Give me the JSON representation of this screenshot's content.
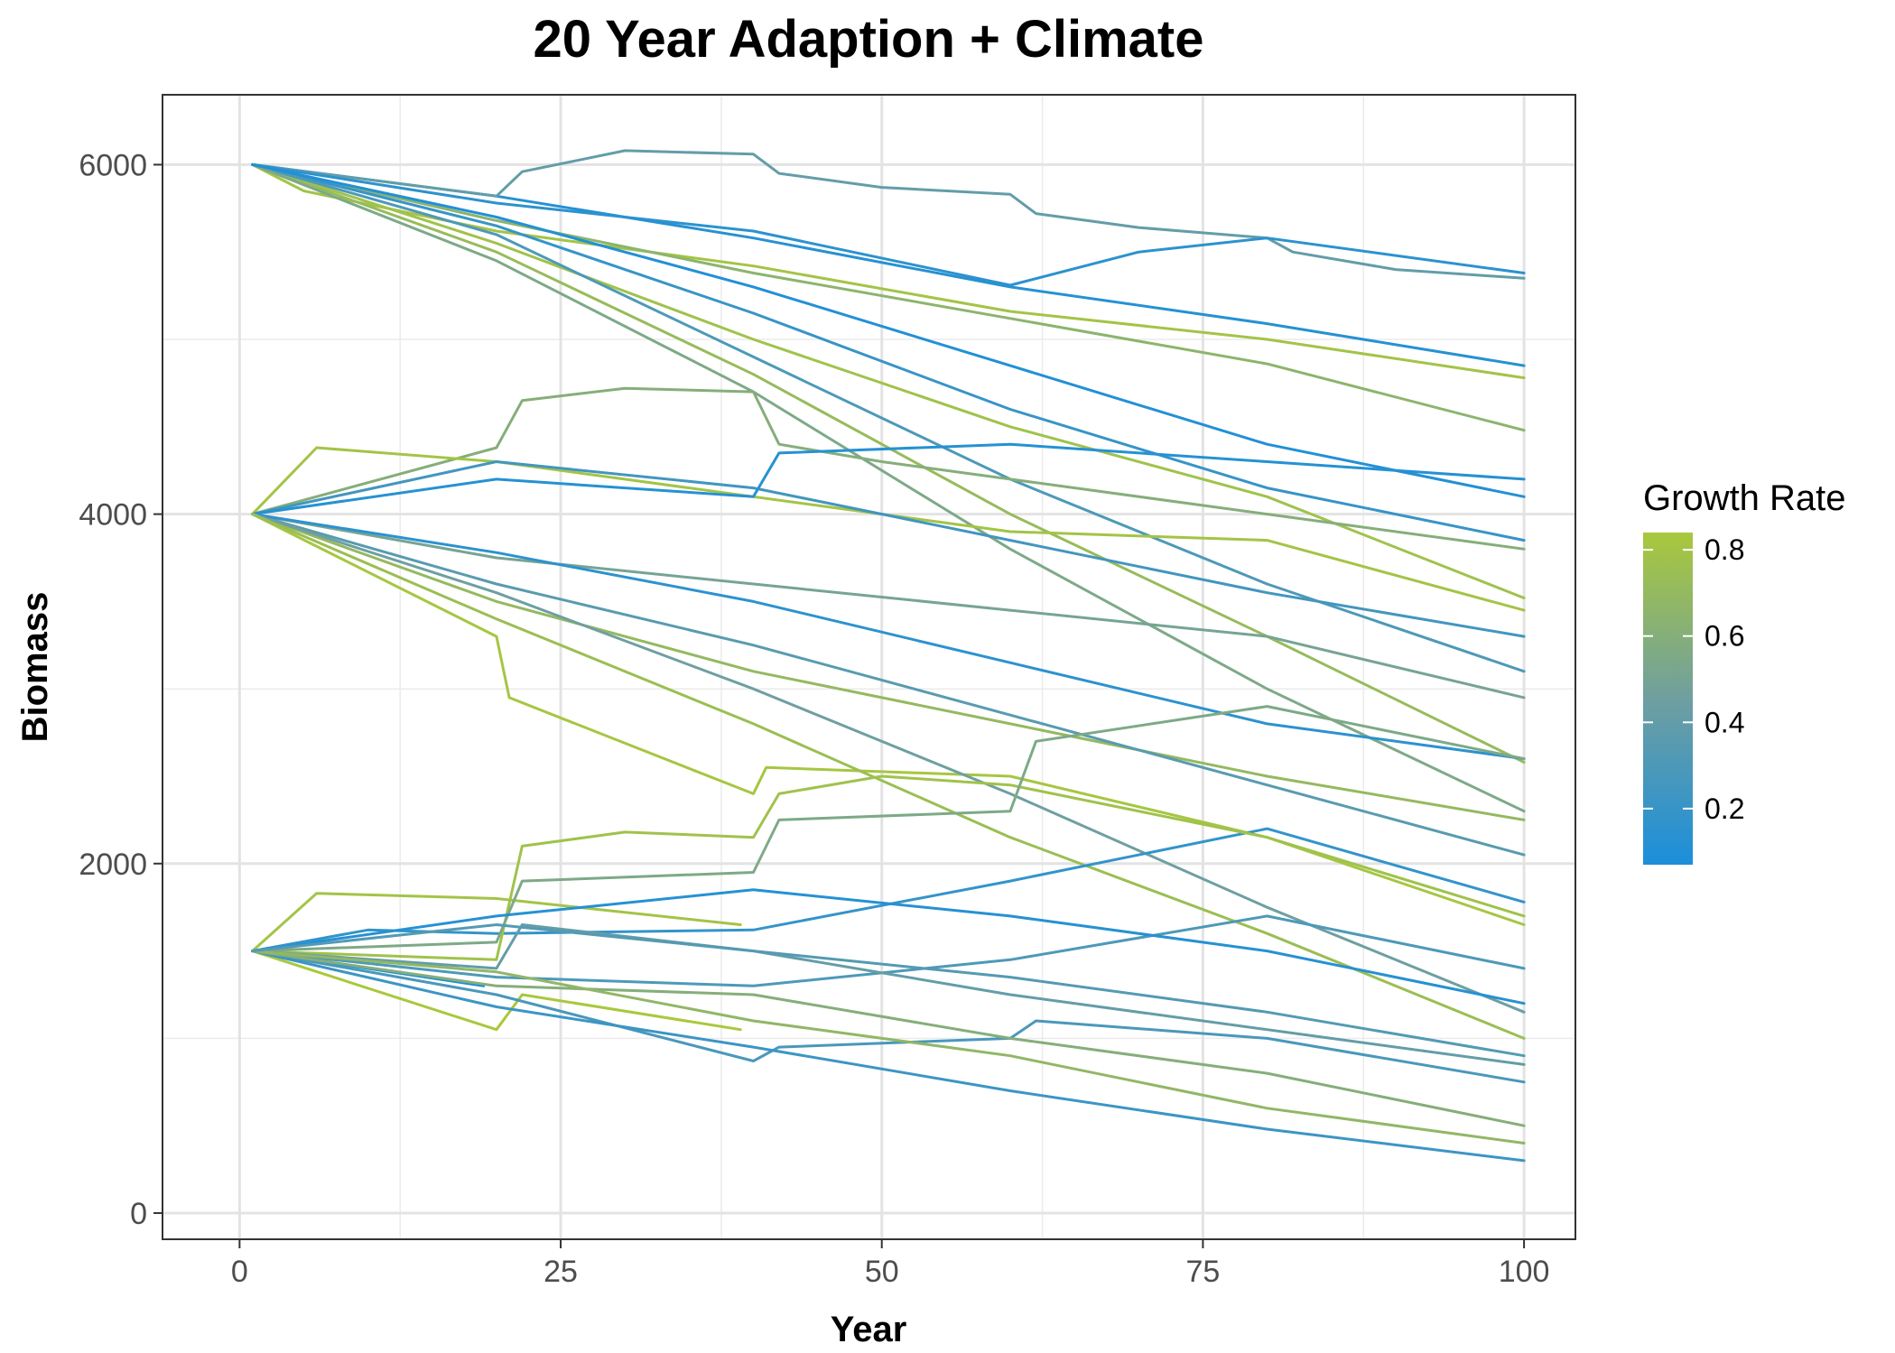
{
  "chart_data": {
    "type": "line",
    "title": "20 Year Adaption + Climate",
    "xlabel": "Year",
    "ylabel": "Biomass",
    "xlim": [
      -6,
      104
    ],
    "ylim": [
      -150,
      6400
    ],
    "x_ticks": [
      0,
      25,
      50,
      75,
      100
    ],
    "x_tick_labels": [
      "0",
      "25",
      "50",
      "75",
      "100"
    ],
    "y_ticks": [
      0,
      2000,
      4000,
      6000
    ],
    "y_tick_labels": [
      "0",
      "2000",
      "4000",
      "6000"
    ],
    "grid": true,
    "legend": {
      "title": "Growth Rate",
      "position": "right",
      "type": "colorbar",
      "range": [
        0.07,
        0.84
      ],
      "breaks": [
        0.2,
        0.4,
        0.6,
        0.8
      ],
      "break_labels": [
        "0.2",
        "0.4",
        "0.6",
        "0.8"
      ],
      "low_color": "#1b8fdb",
      "mid_color": "#6f9fa0",
      "high_color": "#a9c83c"
    },
    "series": [
      {
        "rate": 0.12,
        "x": [
          1,
          20,
          40,
          60,
          80,
          100
        ],
        "y": [
          6000,
          5820,
          5580,
          5300,
          5090,
          4850
        ]
      },
      {
        "rate": 0.4,
        "x": [
          1,
          20,
          22,
          30,
          40,
          42,
          50,
          60,
          62,
          70,
          80,
          82,
          90,
          100
        ],
        "y": [
          6000,
          5820,
          5960,
          6080,
          6060,
          5950,
          5870,
          5830,
          5720,
          5640,
          5580,
          5500,
          5400,
          5350
        ]
      },
      {
        "rate": 0.15,
        "x": [
          1,
          20,
          40,
          60,
          70,
          80,
          100
        ],
        "y": [
          6000,
          5780,
          5620,
          5310,
          5500,
          5580,
          5380
        ]
      },
      {
        "rate": 0.8,
        "x": [
          1,
          5,
          20,
          40,
          60,
          80,
          100
        ],
        "y": [
          6000,
          5850,
          5620,
          5420,
          5160,
          5000,
          4780
        ]
      },
      {
        "rate": 0.65,
        "x": [
          1,
          20,
          40,
          60,
          80,
          100
        ],
        "y": [
          6000,
          5680,
          5380,
          5120,
          4860,
          4480
        ]
      },
      {
        "rate": 0.78,
        "x": [
          1,
          20,
          40,
          60,
          80,
          100
        ],
        "y": [
          6000,
          5550,
          5000,
          4500,
          4100,
          3520
        ]
      },
      {
        "rate": 0.72,
        "x": [
          1,
          20,
          40,
          60,
          80,
          100
        ],
        "y": [
          6000,
          5500,
          4800,
          4000,
          3300,
          2580
        ]
      },
      {
        "rate": 0.2,
        "x": [
          1,
          20,
          40,
          60,
          80,
          100
        ],
        "y": [
          6000,
          5650,
          5150,
          4600,
          4150,
          3850
        ]
      },
      {
        "rate": 0.3,
        "x": [
          1,
          20,
          40,
          60,
          80,
          100
        ],
        "y": [
          6000,
          5600,
          4900,
          4200,
          3600,
          3100
        ]
      },
      {
        "rate": 0.55,
        "x": [
          1,
          20,
          40,
          60,
          80,
          100
        ],
        "y": [
          6000,
          5450,
          4700,
          3800,
          3000,
          2300
        ]
      },
      {
        "rate": 0.1,
        "x": [
          1,
          20,
          40,
          60,
          80,
          100
        ],
        "y": [
          6000,
          5700,
          5300,
          4850,
          4400,
          4100
        ]
      },
      {
        "rate": 0.6,
        "x": [
          1,
          20,
          22,
          30,
          40,
          42,
          50,
          60,
          80,
          100
        ],
        "y": [
          4000,
          4380,
          4650,
          4720,
          4700,
          4400,
          4300,
          4200,
          4000,
          3800
        ]
      },
      {
        "rate": 0.8,
        "x": [
          1,
          6,
          20,
          40,
          60,
          80,
          100
        ],
        "y": [
          4000,
          4380,
          4300,
          4100,
          3900,
          3850,
          3450
        ]
      },
      {
        "rate": 0.25,
        "x": [
          1,
          20,
          40,
          60,
          80,
          100
        ],
        "y": [
          4000,
          4300,
          4150,
          3850,
          3550,
          3300
        ]
      },
      {
        "rate": 0.12,
        "x": [
          1,
          20,
          40,
          42,
          60,
          80,
          100
        ],
        "y": [
          4000,
          4200,
          4100,
          4350,
          4400,
          4300,
          4200
        ]
      },
      {
        "rate": 0.5,
        "x": [
          1,
          20,
          40,
          60,
          80,
          100
        ],
        "y": [
          4000,
          3750,
          3600,
          3450,
          3300,
          2950
        ]
      },
      {
        "rate": 0.7,
        "x": [
          1,
          20,
          40,
          60,
          80,
          100
        ],
        "y": [
          4000,
          3500,
          3100,
          2800,
          2500,
          2250
        ]
      },
      {
        "rate": 0.82,
        "x": [
          1,
          20,
          21,
          40,
          41,
          60,
          80,
          100
        ],
        "y": [
          4000,
          3300,
          2950,
          2400,
          2550,
          2500,
          2150,
          1650
        ]
      },
      {
        "rate": 0.35,
        "x": [
          1,
          20,
          40,
          60,
          80,
          100
        ],
        "y": [
          4000,
          3600,
          3250,
          2850,
          2450,
          2050
        ]
      },
      {
        "rate": 0.15,
        "x": [
          1,
          20,
          40,
          60,
          80,
          100
        ],
        "y": [
          4000,
          3780,
          3500,
          3150,
          2800,
          2600
        ]
      },
      {
        "rate": 0.45,
        "x": [
          1,
          20,
          40,
          60,
          80,
          100
        ],
        "y": [
          4000,
          3550,
          3000,
          2400,
          1750,
          1150
        ]
      },
      {
        "rate": 0.75,
        "x": [
          1,
          20,
          40,
          60,
          80,
          100
        ],
        "y": [
          4000,
          3400,
          2800,
          2150,
          1600,
          1000
        ]
      },
      {
        "rate": 0.8,
        "x": [
          1,
          6,
          20,
          39
        ],
        "y": [
          1500,
          1830,
          1800,
          1650
        ]
      },
      {
        "rate": 0.18,
        "x": [
          1,
          10,
          20,
          40,
          60,
          80,
          100
        ],
        "y": [
          1500,
          1620,
          1600,
          1620,
          1900,
          2200,
          1780
        ]
      },
      {
        "rate": 0.08,
        "x": [
          1,
          19
        ],
        "y": [
          1500,
          1300
        ]
      },
      {
        "rate": 0.78,
        "x": [
          1,
          20,
          22,
          30,
          40,
          42,
          50,
          60,
          80,
          100
        ],
        "y": [
          1500,
          1450,
          2100,
          2180,
          2150,
          2400,
          2500,
          2450,
          2150,
          1700
        ]
      },
      {
        "rate": 0.55,
        "x": [
          1,
          20,
          22,
          40,
          42,
          60,
          62,
          80,
          100
        ],
        "y": [
          1500,
          1550,
          1900,
          1950,
          2250,
          2300,
          2700,
          2900,
          2600
        ]
      },
      {
        "rate": 0.3,
        "x": [
          1,
          20,
          40,
          60,
          80,
          100
        ],
        "y": [
          1500,
          1350,
          1300,
          1450,
          1700,
          1400
        ]
      },
      {
        "rate": 0.85,
        "x": [
          1,
          20,
          22,
          39
        ],
        "y": [
          1500,
          1050,
          1250,
          1050
        ]
      },
      {
        "rate": 0.28,
        "x": [
          1,
          20,
          40,
          42,
          60,
          62,
          80,
          100
        ],
        "y": [
          1500,
          1250,
          870,
          950,
          1000,
          1100,
          1000,
          750
        ]
      },
      {
        "rate": 0.22,
        "x": [
          1,
          20,
          40,
          60,
          80,
          100
        ],
        "y": [
          1500,
          1180,
          950,
          700,
          480,
          300
        ]
      },
      {
        "rate": 0.6,
        "x": [
          1,
          20,
          40,
          60,
          80,
          100
        ],
        "y": [
          1500,
          1300,
          1250,
          1000,
          800,
          500
        ]
      },
      {
        "rate": 0.4,
        "x": [
          1,
          20,
          22,
          40,
          60,
          80,
          100
        ],
        "y": [
          1500,
          1400,
          1650,
          1500,
          1250,
          1050,
          850
        ]
      },
      {
        "rate": 0.68,
        "x": [
          1,
          20,
          40,
          60,
          80,
          100
        ],
        "y": [
          1500,
          1380,
          1100,
          900,
          600,
          400
        ]
      },
      {
        "rate": 0.12,
        "x": [
          1,
          20,
          40,
          60,
          80,
          100
        ],
        "y": [
          1500,
          1700,
          1850,
          1700,
          1500,
          1200
        ]
      },
      {
        "rate": 0.33,
        "x": [
          1,
          20,
          40,
          60,
          80,
          100
        ],
        "y": [
          1500,
          1650,
          1500,
          1350,
          1150,
          900
        ]
      }
    ]
  }
}
